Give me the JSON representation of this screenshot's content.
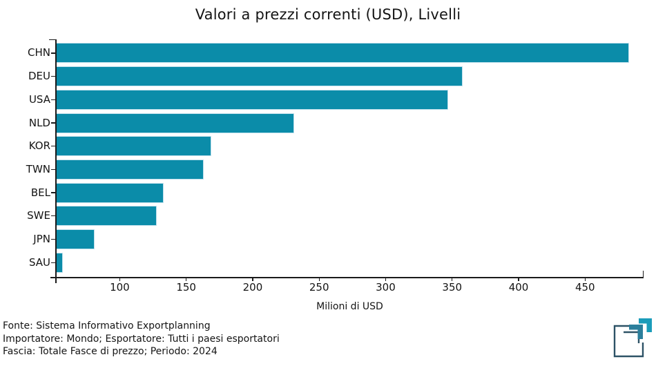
{
  "chart_data": {
    "type": "bar",
    "orientation": "horizontal",
    "title": "Valori a prezzi correnti (USD), Livelli",
    "xlabel": "Milioni di USD",
    "categories": [
      "CHN",
      "DEU",
      "USA",
      "NLD",
      "KOR",
      "TWN",
      "BEL",
      "SWE",
      "JPN",
      "SAU"
    ],
    "values": [
      483,
      358,
      347,
      231,
      169,
      163,
      133,
      128,
      81,
      57
    ],
    "unit": "Milioni di USD",
    "xlim": [
      52,
      494
    ],
    "xticks": [
      100,
      150,
      200,
      250,
      300,
      350,
      400,
      450
    ],
    "grid": false,
    "legend": "none",
    "bar_color": "#0b8ca9",
    "bar_edge_color": "#c2e1ed",
    "axis_color": "#1a1a1a"
  },
  "footer": {
    "lines": [
      "Fonte: Sistema Informativo Exportplanning",
      "Importatore: Mondo; Esportatore: Tutti i paesi esportatori",
      "Fascia: Totale Fasce di prezzo; Periodo: 2024"
    ]
  },
  "logo": {
    "name": "exportplanning-logo",
    "dark_color": "#2d5266",
    "mid_teal": "#2c7f9c",
    "bright_teal": "#1b9cba"
  }
}
